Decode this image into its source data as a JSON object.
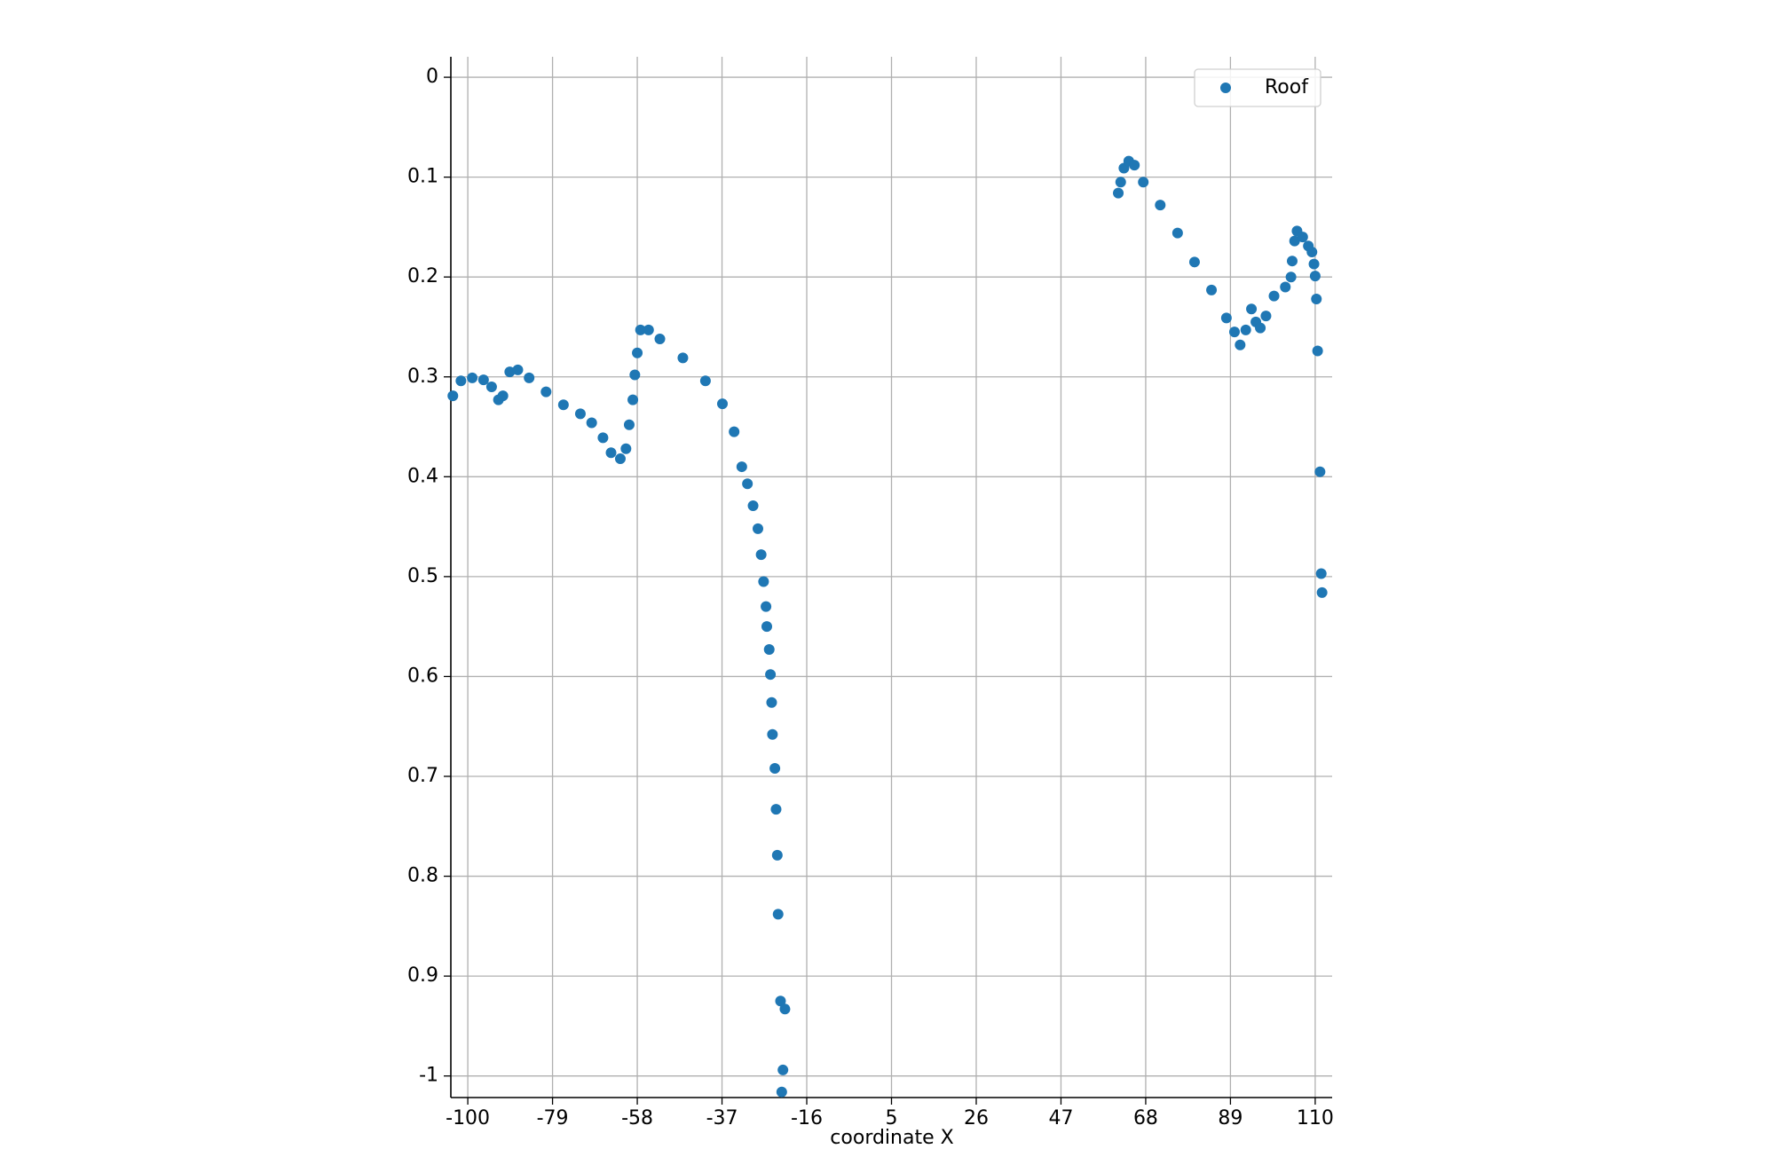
{
  "chart_data": {
    "type": "scatter",
    "xlabel": "coordinate X",
    "x": [
      -103.7,
      -101.7,
      -98.9,
      -96.1,
      -94.1,
      -92.4,
      -91.3,
      -89.6,
      -87.6,
      -84.8,
      -80.6,
      -76.3,
      -72.1,
      -69.3,
      -66.5,
      -64.5,
      -62.2,
      -60.8,
      -60.0,
      -59.1,
      -58.6,
      -58.0,
      -57.2,
      -55.2,
      -52.4,
      -46.7,
      -41.1,
      -36.9,
      -34.0,
      -32.1,
      -30.7,
      -29.3,
      -28.1,
      -27.3,
      -26.7,
      -26.1,
      -25.9,
      -25.3,
      -25.0,
      -24.7,
      -24.5,
      -23.9,
      -23.6,
      -23.3,
      -23.1,
      -22.5,
      -21.4,
      -21.9,
      -22.2,
      61.2,
      61.8,
      62.6,
      63.8,
      65.2,
      67.4,
      71.6,
      75.9,
      80.1,
      84.3,
      88.0,
      90.0,
      91.4,
      92.8,
      94.2,
      95.3,
      96.4,
      97.8,
      99.8,
      102.6,
      104.0,
      104.3,
      104.9,
      105.5,
      106.9,
      108.3,
      109.2,
      109.7,
      110.0,
      110.3,
      110.6,
      111.2,
      111.5,
      111.7
    ],
    "series": [
      {
        "name": "Roof",
        "color": "#1f77b4",
        "values": [
          -0.319,
          -0.304,
          -0.301,
          -0.303,
          -0.31,
          -0.323,
          -0.319,
          -0.295,
          -0.293,
          -0.301,
          -0.315,
          -0.328,
          -0.337,
          -0.346,
          -0.361,
          -0.376,
          -0.382,
          -0.372,
          -0.348,
          -0.323,
          -0.298,
          -0.276,
          -0.253,
          -0.253,
          -0.262,
          -0.281,
          -0.304,
          -0.327,
          -0.355,
          -0.39,
          -0.407,
          -0.429,
          -0.452,
          -0.478,
          -0.505,
          -0.53,
          -0.55,
          -0.573,
          -0.598,
          -0.626,
          -0.658,
          -0.692,
          -0.733,
          -0.779,
          -0.838,
          -0.925,
          -0.933,
          -0.994,
          -1.016,
          -0.116,
          -0.105,
          -0.091,
          -0.084,
          -0.088,
          -0.105,
          -0.128,
          -0.156,
          -0.185,
          -0.213,
          -0.241,
          -0.255,
          -0.268,
          -0.253,
          -0.232,
          -0.245,
          -0.251,
          -0.239,
          -0.219,
          -0.21,
          -0.2,
          -0.184,
          -0.164,
          -0.154,
          -0.16,
          -0.169,
          -0.175,
          -0.187,
          -0.199,
          -0.222,
          -0.274,
          -0.395,
          -0.497,
          -0.516
        ]
      }
    ],
    "xlim": [
      -104.2,
      114.2
    ],
    "xticks": [
      -100,
      -79,
      -58,
      -37,
      -16,
      5,
      26,
      47,
      68,
      89,
      110
    ],
    "ylim": [
      -1.0216,
      0.0205
    ],
    "yticks": [
      0,
      {
        "value": -0.1,
        "label": "0.1"
      },
      {
        "value": -0.2,
        "label": "0.2"
      },
      {
        "value": -0.3,
        "label": "0.3"
      },
      {
        "value": -0.4,
        "label": "0.4"
      },
      {
        "value": -0.5,
        "label": "0.5"
      },
      {
        "value": -0.6,
        "label": "0.6"
      },
      {
        "value": -0.7,
        "label": "0.7"
      },
      {
        "value": -0.8,
        "label": "0.8"
      },
      {
        "value": -0.9,
        "label": "0.9"
      },
      -1
    ],
    "grid": true,
    "legend": "upper right"
  }
}
